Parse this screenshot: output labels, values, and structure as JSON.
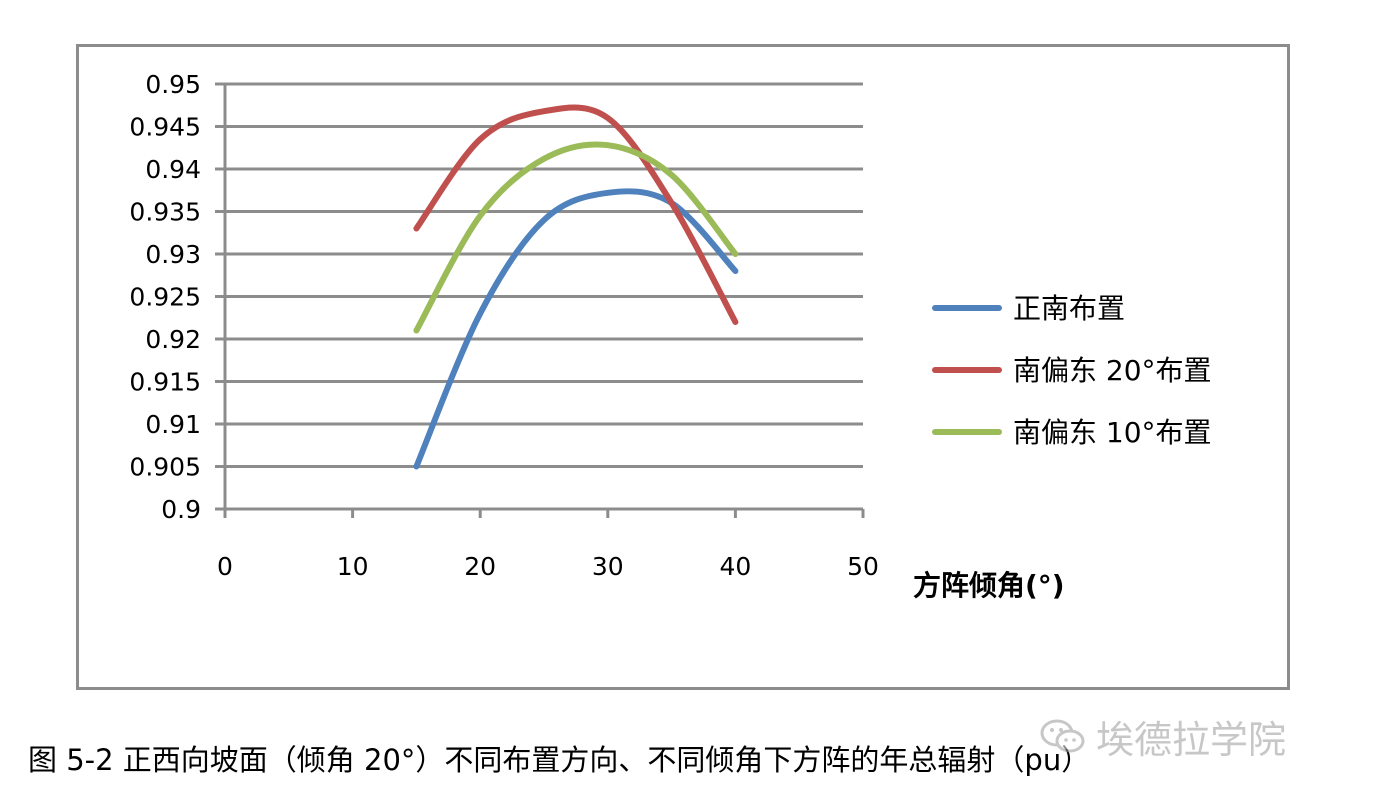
{
  "chart_data": {
    "type": "line",
    "x": [
      15,
      20,
      25,
      30,
      35,
      40
    ],
    "series": [
      {
        "name": "正南布置",
        "color": "#4f81bd",
        "values": [
          0.905,
          0.923,
          0.934,
          0.9372,
          0.936,
          0.928
        ]
      },
      {
        "name": "南偏东 20°布置",
        "color": "#c0504d",
        "values": [
          0.933,
          0.9435,
          0.9468,
          0.946,
          0.936,
          0.922
        ]
      },
      {
        "name": "南偏东 10°布置",
        "color": "#9bbb59",
        "values": [
          0.921,
          0.9345,
          0.9412,
          0.9428,
          0.9393,
          0.93
        ]
      }
    ],
    "xlim": [
      0,
      50
    ],
    "ylim": [
      0.9,
      0.95
    ],
    "x_ticks": [
      "0",
      "10",
      "20",
      "30",
      "40",
      "50"
    ],
    "y_ticks": [
      "0.95",
      "0.945",
      "0.94",
      "0.935",
      "0.93",
      "0.925",
      "0.92",
      "0.915",
      "0.91",
      "0.905",
      "0.9"
    ],
    "xlabel": "方阵倾角(°)",
    "ylabel": "",
    "grid": "horizontal",
    "legend_position": "right"
  },
  "caption": "图 5-2 正西向坡面（倾角 20°）不同布置方向、不同倾角下方阵的年总辐射（pu）",
  "watermark": {
    "text": "埃德拉学院",
    "icon": "wechat-icon"
  },
  "colors": {
    "frame": "#8c8c8c",
    "grid": "#8c8c8c",
    "axis": "#8c8c8c"
  }
}
